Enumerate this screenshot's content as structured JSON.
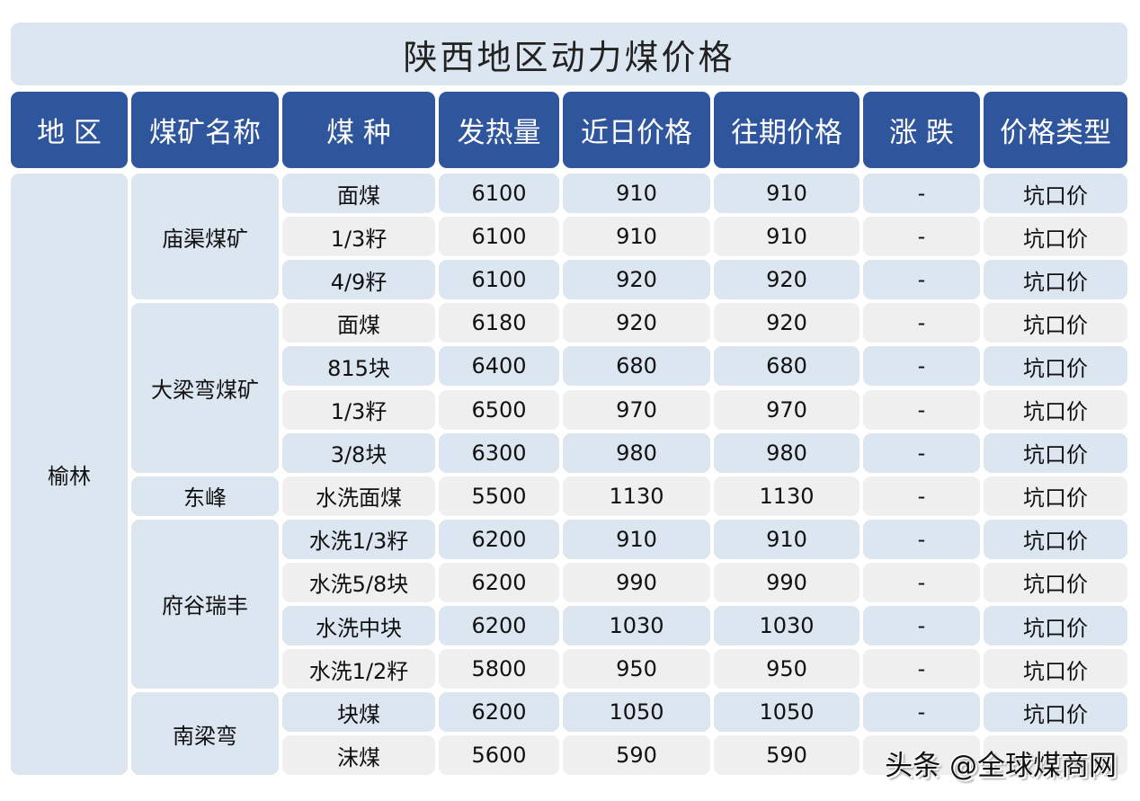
{
  "title": "陕西地区动力煤价格",
  "headers": [
    "地 区",
    "煤矿名称",
    "煤 种",
    "发热量",
    "近日价格",
    "往期价格",
    "涨 跌",
    "价格类型"
  ],
  "region": "榆林",
  "mines": [
    {
      "name": "庙渠煤矿",
      "rows": 3
    },
    {
      "name": "大梁弯煤矿",
      "rows": 4
    },
    {
      "name": "东峰",
      "rows": 1
    },
    {
      "name": "府谷瑞丰",
      "rows": 4
    },
    {
      "name": "南梁弯",
      "rows": 2
    }
  ],
  "rows": [
    [
      "面煤",
      "6100",
      "910",
      "910",
      "-",
      "坑口价"
    ],
    [
      "1/3籽",
      "6100",
      "910",
      "910",
      "-",
      "坑口价"
    ],
    [
      "4/9籽",
      "6100",
      "920",
      "920",
      "-",
      "坑口价"
    ],
    [
      "面煤",
      "6180",
      "920",
      "920",
      "-",
      "坑口价"
    ],
    [
      "815块",
      "6400",
      "680",
      "680",
      "-",
      "坑口价"
    ],
    [
      "1/3籽",
      "6500",
      "970",
      "970",
      "-",
      "坑口价"
    ],
    [
      "3/8块",
      "6300",
      "980",
      "980",
      "-",
      "坑口价"
    ],
    [
      "水洗面煤",
      "5500",
      "1130",
      "1130",
      "-",
      "坑口价"
    ],
    [
      "水洗1/3籽",
      "6200",
      "910",
      "910",
      "-",
      "坑口价"
    ],
    [
      "水洗5/8块",
      "6200",
      "990",
      "990",
      "-",
      "坑口价"
    ],
    [
      "水洗中块",
      "6200",
      "1030",
      "1030",
      "-",
      "坑口价"
    ],
    [
      "水洗1/2籽",
      "5800",
      "950",
      "950",
      "-",
      "坑口价"
    ],
    [
      "块煤",
      "6200",
      "1050",
      "1050",
      "-",
      "坑口价"
    ],
    [
      "沫煤",
      "5600",
      "590",
      "590",
      "",
      ""
    ]
  ],
  "watermark": "头条 @全球煤商网",
  "colors": {
    "header": "#2f559c",
    "row_blue": "#dce6f1",
    "row_gray": "#efefef"
  }
}
